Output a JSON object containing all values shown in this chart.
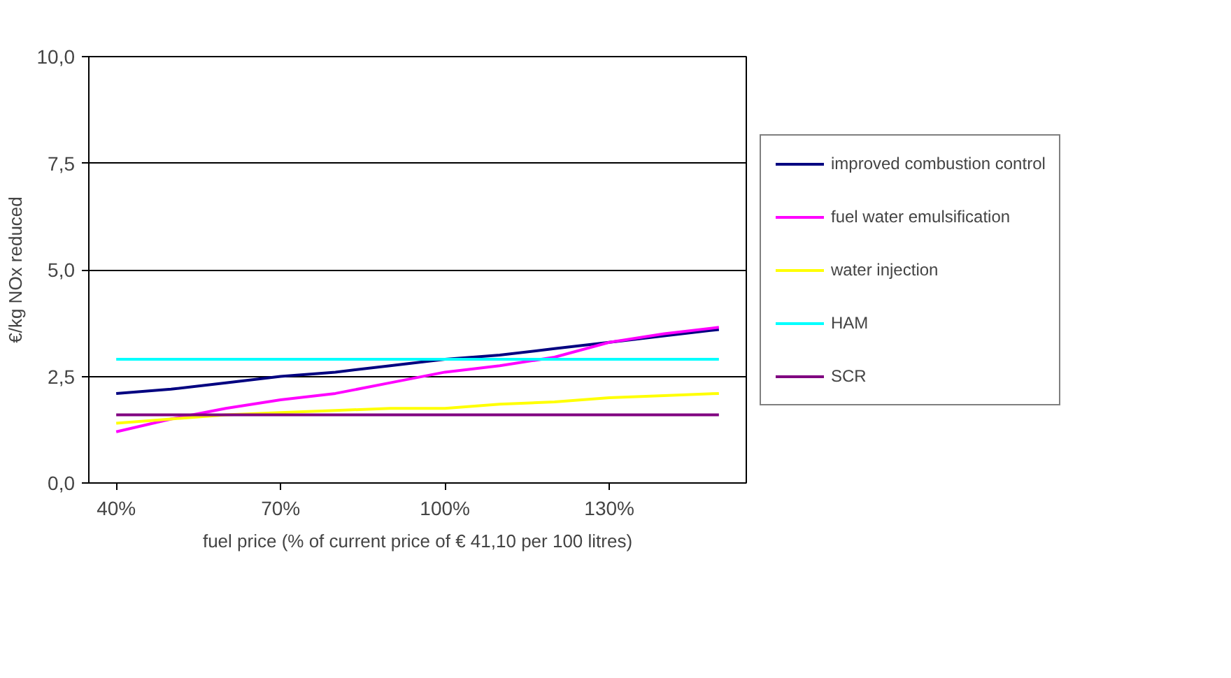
{
  "chart_data": {
    "type": "line",
    "xlabel": "fuel price (% of current price of € 41,10 per 100 litres)",
    "ylabel": "€/kg NOx reduced",
    "x": [
      40,
      50,
      60,
      70,
      80,
      90,
      100,
      110,
      120,
      130,
      140,
      150
    ],
    "xlim": [
      35,
      155
    ],
    "xticks": [
      {
        "value": 40,
        "label": "40%"
      },
      {
        "value": 70,
        "label": "70%"
      },
      {
        "value": 100,
        "label": "100%"
      },
      {
        "value": 130,
        "label": "130%"
      }
    ],
    "ylim": [
      0,
      10
    ],
    "yticks": [
      {
        "value": 0,
        "label": "0,0"
      },
      {
        "value": 2.5,
        "label": "2,5"
      },
      {
        "value": 5,
        "label": "5,0"
      },
      {
        "value": 7.5,
        "label": "7,5"
      },
      {
        "value": 10,
        "label": "10,0"
      }
    ],
    "grid": "y",
    "legend": "right",
    "marker": "none",
    "line_style": "solid",
    "series": [
      {
        "name": "improved combustion control",
        "color": "#000080",
        "values": [
          2.1,
          2.2,
          2.35,
          2.5,
          2.6,
          2.75,
          2.9,
          3.0,
          3.15,
          3.3,
          3.45,
          3.6
        ]
      },
      {
        "name": "fuel water emulsification",
        "color": "#ff00ff",
        "values": [
          1.2,
          1.5,
          1.75,
          1.95,
          2.1,
          2.35,
          2.6,
          2.75,
          2.95,
          3.3,
          3.5,
          3.65
        ]
      },
      {
        "name": "water injection",
        "color": "#ffff00",
        "values": [
          1.4,
          1.5,
          1.6,
          1.65,
          1.7,
          1.75,
          1.75,
          1.85,
          1.9,
          2.0,
          2.05,
          2.1
        ]
      },
      {
        "name": "HAM",
        "color": "#00ffff",
        "values": [
          2.9,
          2.9,
          2.9,
          2.9,
          2.9,
          2.9,
          2.9,
          2.9,
          2.9,
          2.9,
          2.9,
          2.9
        ]
      },
      {
        "name": "SCR",
        "color": "#800080",
        "values": [
          1.6,
          1.6,
          1.6,
          1.6,
          1.6,
          1.6,
          1.6,
          1.6,
          1.6,
          1.6,
          1.6,
          1.6
        ]
      }
    ]
  }
}
